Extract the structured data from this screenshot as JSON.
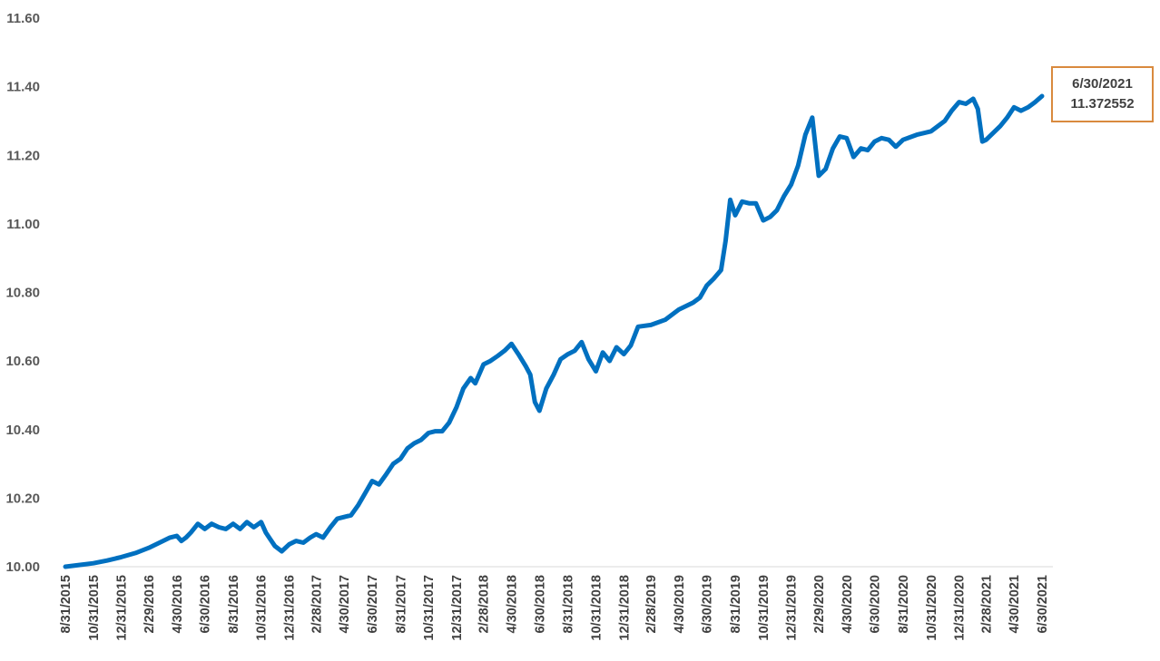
{
  "chart_data": {
    "type": "line",
    "title": "",
    "xlabel": "",
    "ylabel": "",
    "ylim": [
      10.0,
      11.6
    ],
    "y_ticks": [
      "10.00",
      "10.20",
      "10.40",
      "10.60",
      "10.80",
      "11.00",
      "11.20",
      "11.40",
      "11.60"
    ],
    "x_tick_labels": [
      "8/31/2015",
      "10/31/2015",
      "12/31/2015",
      "2/29/2016",
      "4/30/2016",
      "6/30/2016",
      "8/31/2016",
      "10/31/2016",
      "12/31/2016",
      "2/28/2017",
      "4/30/2017",
      "6/30/2017",
      "8/31/2017",
      "10/31/2017",
      "12/31/2017",
      "2/28/2018",
      "4/30/2018",
      "6/30/2018",
      "8/31/2018",
      "10/31/2018",
      "12/31/2018",
      "2/28/2019",
      "4/30/2019",
      "6/30/2019",
      "8/31/2019",
      "10/31/2019",
      "12/31/2019",
      "2/29/2020",
      "4/30/2020",
      "6/30/2020",
      "8/31/2020",
      "10/31/2020",
      "12/31/2020",
      "2/28/2021",
      "4/30/2021",
      "6/30/2021"
    ],
    "grid": false,
    "legend": "none",
    "series": [
      {
        "color": "#0070C0",
        "points": [
          [
            "8/31/2015",
            10.0
          ],
          [
            "9/30/2015",
            10.005
          ],
          [
            "10/31/2015",
            10.01
          ],
          [
            "11/30/2015",
            10.018
          ],
          [
            "12/31/2015",
            10.028
          ],
          [
            "1/31/2016",
            10.04
          ],
          [
            "2/29/2016",
            10.055
          ],
          [
            "3/31/2016",
            10.075
          ],
          [
            "4/15/2016",
            10.085
          ],
          [
            "4/30/2016",
            10.09
          ],
          [
            "5/10/2016",
            10.075
          ],
          [
            "5/20/2016",
            10.085
          ],
          [
            "5/31/2016",
            10.1
          ],
          [
            "6/15/2016",
            10.125
          ],
          [
            "6/30/2016",
            10.11
          ],
          [
            "7/15/2016",
            10.125
          ],
          [
            "7/31/2016",
            10.115
          ],
          [
            "8/15/2016",
            10.11
          ],
          [
            "8/31/2016",
            10.125
          ],
          [
            "9/15/2016",
            10.11
          ],
          [
            "9/30/2016",
            10.13
          ],
          [
            "10/15/2016",
            10.115
          ],
          [
            "10/31/2016",
            10.13
          ],
          [
            "11/10/2016",
            10.1
          ],
          [
            "11/20/2016",
            10.08
          ],
          [
            "11/30/2016",
            10.06
          ],
          [
            "12/15/2016",
            10.045
          ],
          [
            "12/31/2016",
            10.065
          ],
          [
            "1/15/2017",
            10.075
          ],
          [
            "1/31/2017",
            10.07
          ],
          [
            "2/15/2017",
            10.085
          ],
          [
            "2/28/2017",
            10.095
          ],
          [
            "3/15/2017",
            10.085
          ],
          [
            "3/31/2017",
            10.115
          ],
          [
            "4/15/2017",
            10.14
          ],
          [
            "4/30/2017",
            10.145
          ],
          [
            "5/15/2017",
            10.15
          ],
          [
            "5/31/2017",
            10.18
          ],
          [
            "6/15/2017",
            10.215
          ],
          [
            "6/30/2017",
            10.25
          ],
          [
            "7/15/2017",
            10.24
          ],
          [
            "7/31/2017",
            10.27
          ],
          [
            "8/15/2017",
            10.3
          ],
          [
            "8/31/2017",
            10.315
          ],
          [
            "9/15/2017",
            10.345
          ],
          [
            "9/30/2017",
            10.36
          ],
          [
            "10/15/2017",
            10.37
          ],
          [
            "10/31/2017",
            10.39
          ],
          [
            "11/15/2017",
            10.395
          ],
          [
            "11/30/2017",
            10.395
          ],
          [
            "12/15/2017",
            10.42
          ],
          [
            "12/31/2017",
            10.465
          ],
          [
            "1/15/2018",
            10.52
          ],
          [
            "1/31/2018",
            10.55
          ],
          [
            "2/10/2018",
            10.535
          ],
          [
            "2/28/2018",
            10.59
          ],
          [
            "3/15/2018",
            10.6
          ],
          [
            "3/31/2018",
            10.615
          ],
          [
            "4/15/2018",
            10.63
          ],
          [
            "4/30/2018",
            10.65
          ],
          [
            "5/15/2018",
            10.62
          ],
          [
            "5/31/2018",
            10.585
          ],
          [
            "6/10/2018",
            10.56
          ],
          [
            "6/20/2018",
            10.48
          ],
          [
            "6/30/2018",
            10.455
          ],
          [
            "7/15/2018",
            10.52
          ],
          [
            "7/31/2018",
            10.56
          ],
          [
            "8/15/2018",
            10.605
          ],
          [
            "8/31/2018",
            10.62
          ],
          [
            "9/15/2018",
            10.63
          ],
          [
            "9/30/2018",
            10.655
          ],
          [
            "10/15/2018",
            10.605
          ],
          [
            "10/31/2018",
            10.57
          ],
          [
            "11/15/2018",
            10.625
          ],
          [
            "11/30/2018",
            10.6
          ],
          [
            "12/15/2018",
            10.64
          ],
          [
            "12/31/2018",
            10.62
          ],
          [
            "1/15/2019",
            10.645
          ],
          [
            "1/31/2019",
            10.7
          ],
          [
            "2/28/2019",
            10.705
          ],
          [
            "3/31/2019",
            10.72
          ],
          [
            "4/30/2019",
            10.75
          ],
          [
            "5/31/2019",
            10.77
          ],
          [
            "6/15/2019",
            10.785
          ],
          [
            "6/30/2019",
            10.82
          ],
          [
            "7/15/2019",
            10.84
          ],
          [
            "7/31/2019",
            10.865
          ],
          [
            "8/10/2019",
            10.95
          ],
          [
            "8/20/2019",
            11.07
          ],
          [
            "8/31/2019",
            11.025
          ],
          [
            "9/15/2019",
            11.065
          ],
          [
            "9/30/2019",
            11.06
          ],
          [
            "10/15/2019",
            11.06
          ],
          [
            "10/31/2019",
            11.01
          ],
          [
            "11/15/2019",
            11.02
          ],
          [
            "11/30/2019",
            11.04
          ],
          [
            "12/15/2019",
            11.08
          ],
          [
            "12/31/2019",
            11.115
          ],
          [
            "1/15/2020",
            11.17
          ],
          [
            "1/31/2020",
            11.26
          ],
          [
            "2/15/2020",
            11.31
          ],
          [
            "2/29/2020",
            11.14
          ],
          [
            "3/15/2020",
            11.16
          ],
          [
            "3/31/2020",
            11.22
          ],
          [
            "4/15/2020",
            11.255
          ],
          [
            "4/30/2020",
            11.25
          ],
          [
            "5/15/2020",
            11.195
          ],
          [
            "5/31/2020",
            11.22
          ],
          [
            "6/15/2020",
            11.215
          ],
          [
            "6/30/2020",
            11.24
          ],
          [
            "7/15/2020",
            11.25
          ],
          [
            "7/31/2020",
            11.245
          ],
          [
            "8/15/2020",
            11.225
          ],
          [
            "8/31/2020",
            11.245
          ],
          [
            "9/30/2020",
            11.26
          ],
          [
            "10/31/2020",
            11.27
          ],
          [
            "11/30/2020",
            11.3
          ],
          [
            "12/15/2020",
            11.33
          ],
          [
            "12/31/2020",
            11.355
          ],
          [
            "1/15/2021",
            11.35
          ],
          [
            "1/31/2021",
            11.365
          ],
          [
            "2/10/2021",
            11.335
          ],
          [
            "2/20/2021",
            11.24
          ],
          [
            "2/28/2021",
            11.245
          ],
          [
            "3/31/2021",
            11.285
          ],
          [
            "4/15/2021",
            11.31
          ],
          [
            "4/30/2021",
            11.34
          ],
          [
            "5/15/2021",
            11.33
          ],
          [
            "5/31/2021",
            11.34
          ],
          [
            "6/15/2021",
            11.355
          ],
          [
            "6/30/2021",
            11.372552
          ]
        ]
      }
    ],
    "annotation": {
      "date": "6/30/2021",
      "value": "11.372552",
      "border_color": "#D98A3E"
    }
  }
}
